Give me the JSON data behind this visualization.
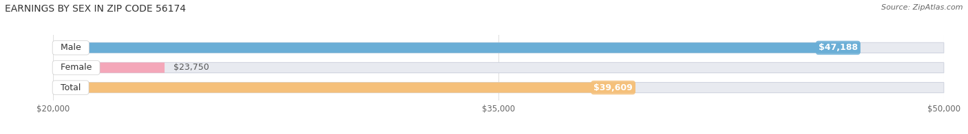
{
  "title": "EARNINGS BY SEX IN ZIP CODE 56174",
  "source": "Source: ZipAtlas.com",
  "categories": [
    "Male",
    "Female",
    "Total"
  ],
  "values": [
    47188,
    23750,
    39609
  ],
  "bar_colors": [
    "#6aaed6",
    "#f4a7b9",
    "#f5c07a"
  ],
  "value_labels": [
    "$47,188",
    "$23,750",
    "$39,609"
  ],
  "value_inside": [
    true,
    false,
    true
  ],
  "xlim": [
    20000,
    50000
  ],
  "xticks": [
    20000,
    35000,
    50000
  ],
  "xticklabels": [
    "$20,000",
    "$35,000",
    "$50,000"
  ],
  "bar_height": 0.52,
  "figsize": [
    14.06,
    1.96
  ],
  "dpi": 100,
  "background_color": "#ffffff",
  "bar_bg_color": "#e8eaf0",
  "bar_border_color": "#d0d4e0",
  "title_fontsize": 10,
  "source_fontsize": 8,
  "label_fontsize": 9,
  "tick_fontsize": 8.5
}
